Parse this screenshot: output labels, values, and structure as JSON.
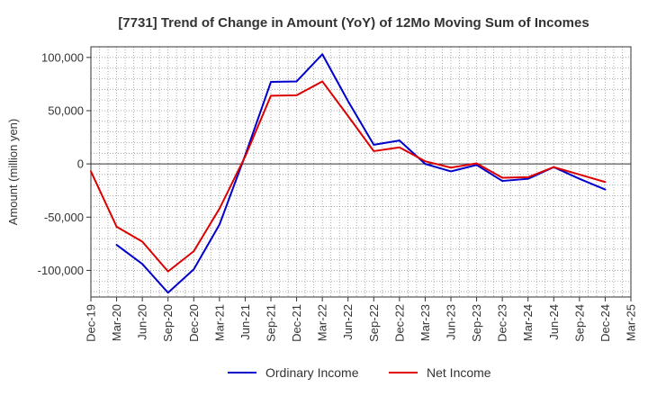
{
  "chart_data": {
    "type": "line",
    "title": "[7731]  Trend of Change in Amount (YoY) of 12Mo Moving Sum of Incomes",
    "ylabel": "Amount (million yen)",
    "xlabel": "",
    "x": [
      "Dec-19",
      "Mar-20",
      "Jun-20",
      "Sep-20",
      "Dec-20",
      "Mar-21",
      "Jun-21",
      "Sep-21",
      "Dec-21",
      "Mar-22",
      "Jun-22",
      "Sep-22",
      "Dec-22",
      "Mar-23",
      "Jun-23",
      "Sep-23",
      "Dec-23",
      "Mar-24",
      "Jun-24",
      "Sep-24",
      "Dec-24",
      "Mar-25"
    ],
    "ylim": [
      -125000,
      110000
    ],
    "yticks": [
      100000,
      50000,
      0,
      -50000,
      -100000
    ],
    "ytick_labels": [
      "100,000",
      "50,000",
      "0",
      "-50,000",
      "-100,000"
    ],
    "grid": true,
    "legend_position": "bottom",
    "series": [
      {
        "name": "Ordinary Income",
        "color": "#0000cc",
        "values": [
          null,
          -76000,
          -94000,
          -121000,
          -99000,
          -57000,
          8000,
          77000,
          77500,
          103000,
          59000,
          18000,
          22000,
          0,
          -7000,
          -1000,
          -16000,
          -14000,
          -3000,
          -14000,
          -24000,
          null
        ]
      },
      {
        "name": "Net Income",
        "color": "#dd0000",
        "values": [
          -7000,
          -59000,
          -73000,
          -101000,
          -82000,
          -42000,
          7000,
          64000,
          64500,
          77500,
          45000,
          12000,
          15500,
          2500,
          -3500,
          500,
          -13000,
          -12500,
          -3000,
          -10000,
          -17000,
          null
        ]
      }
    ]
  }
}
